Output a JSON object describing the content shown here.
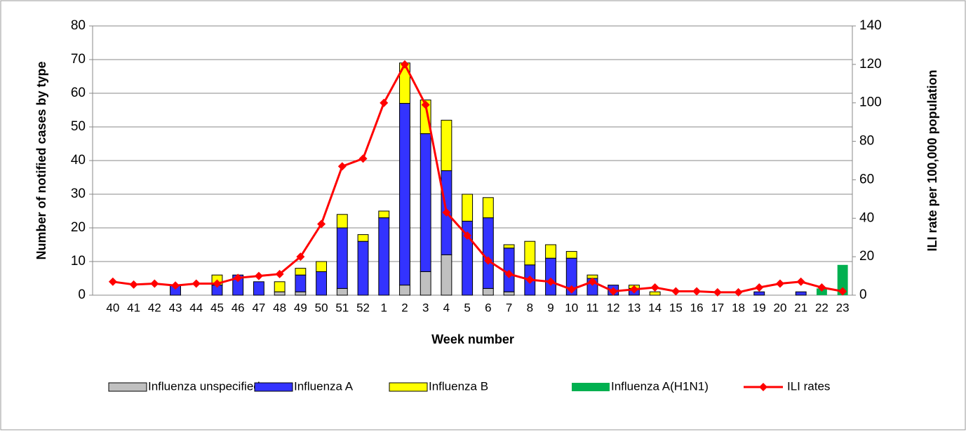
{
  "chart_data": {
    "type": "bar",
    "stacked": true,
    "x_label": "Week number",
    "y_label": "Number of notified cases by type",
    "y2_label": "ILI rate per 100,000 population",
    "categories": [
      "40",
      "41",
      "42",
      "43",
      "44",
      "45",
      "46",
      "47",
      "48",
      "49",
      "50",
      "51",
      "52",
      "1",
      "2",
      "3",
      "4",
      "5",
      "6",
      "7",
      "8",
      "9",
      "10",
      "11",
      "12",
      "13",
      "14",
      "15",
      "16",
      "17",
      "18",
      "19",
      "20",
      "21",
      "22",
      "23"
    ],
    "series": [
      {
        "name": "Influenza unspecified",
        "color": "#c0c0c0",
        "values": [
          0,
          0,
          0,
          0,
          0,
          0,
          0,
          0,
          1,
          1,
          0,
          2,
          0,
          0,
          3,
          7,
          12,
          0,
          2,
          1,
          0,
          0,
          0,
          0,
          0,
          0,
          0,
          0,
          0,
          0,
          0,
          0,
          0,
          0,
          0,
          0
        ]
      },
      {
        "name": "Influenza A",
        "color": "#3333ff",
        "values": [
          0,
          0,
          0,
          3,
          0,
          3,
          6,
          4,
          0,
          5,
          7,
          18,
          16,
          23,
          54,
          41,
          25,
          22,
          21,
          13,
          9,
          11,
          11,
          5,
          3,
          2,
          0,
          0,
          0,
          0,
          0,
          1,
          0,
          1,
          0,
          0
        ]
      },
      {
        "name": "Influenza B",
        "color": "#ffff00",
        "values": [
          0,
          0,
          0,
          0,
          0,
          3,
          0,
          0,
          3,
          2,
          3,
          4,
          2,
          2,
          12,
          10,
          15,
          8,
          6,
          1,
          7,
          4,
          2,
          1,
          0,
          1,
          1,
          0,
          0,
          0,
          0,
          0,
          0,
          0,
          0,
          0
        ]
      },
      {
        "name": "Influenza A(H1N1)",
        "color": "#00b050",
        "values": [
          0,
          0,
          0,
          0,
          0,
          0,
          0,
          0,
          0,
          0,
          0,
          0,
          0,
          0,
          0,
          0,
          0,
          0,
          0,
          0,
          0,
          0,
          0,
          0,
          0,
          0,
          0,
          0,
          0,
          0,
          0,
          0,
          0,
          0,
          2,
          9
        ]
      },
      {
        "name": "ILI rates",
        "color": "#ff0000",
        "type": "line",
        "axis": "y2",
        "values": [
          7,
          5.5,
          6,
          5,
          6,
          6,
          9,
          10,
          11,
          20,
          37,
          67,
          71,
          100,
          120,
          99,
          43,
          31,
          18,
          11,
          8,
          7,
          3,
          7,
          2,
          3,
          4,
          2,
          2,
          1.5,
          1.5,
          4,
          6,
          7,
          4,
          2
        ]
      }
    ],
    "ylim": [
      0,
      80
    ],
    "yticks": [
      0,
      10,
      20,
      30,
      40,
      50,
      60,
      70,
      80
    ],
    "y2lim": [
      0,
      140
    ],
    "y2ticks": [
      0,
      20,
      40,
      60,
      80,
      100,
      120,
      140
    ],
    "grid": true
  }
}
